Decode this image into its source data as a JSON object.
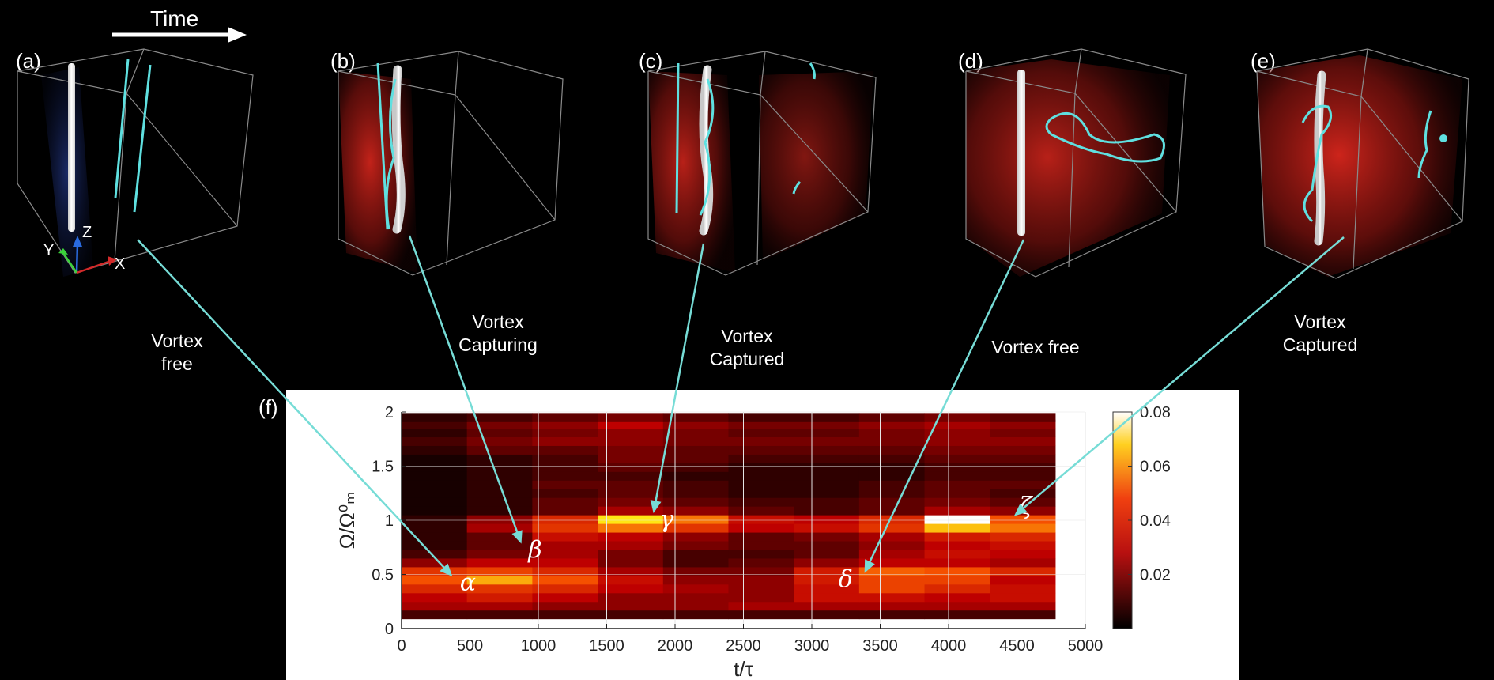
{
  "header": {
    "time_label": "Time"
  },
  "panels": [
    {
      "label": "(a)",
      "phase_lines": [
        "Vortex",
        "free"
      ]
    },
    {
      "label": "(b)",
      "phase_lines": [
        "Vortex",
        "Capturing"
      ]
    },
    {
      "label": "(c)",
      "phase_lines": [
        "Vortex",
        "Captured"
      ]
    },
    {
      "label": "(d)",
      "phase_lines": [
        "Vortex free"
      ]
    },
    {
      "label": "(e)",
      "phase_lines": [
        "Vortex",
        "Captured"
      ]
    }
  ],
  "axes_triad": {
    "x": "X",
    "y": "Y",
    "z": "Z"
  },
  "chart_panel_label": "(f)",
  "chart_data": {
    "type": "heatmap",
    "xlabel": "t/τ",
    "ylabel": "Ω/Ω⁰ₘ",
    "xlim": [
      0,
      5000
    ],
    "ylim": [
      0,
      2
    ],
    "x_data_extent": [
      0,
      4780
    ],
    "y_data_extent": [
      0.1,
      1.98
    ],
    "xticks": [
      0,
      500,
      1000,
      1500,
      2000,
      2500,
      3000,
      3500,
      4000,
      4500,
      5000
    ],
    "yticks": [
      0,
      0.5,
      1,
      1.5,
      2
    ],
    "colorbar": {
      "range": [
        0,
        0.08
      ],
      "ticks": [
        "0.02",
        "0.04",
        "0.06",
        "0.08"
      ],
      "colormap": "hot"
    },
    "bands": [
      {
        "y": 0.13,
        "intensity": [
          0.15,
          0.15,
          0.15,
          0.15,
          0.15,
          0.15,
          0.15,
          0.15,
          0.15,
          0.15
        ]
      },
      {
        "y": 0.21,
        "intensity": [
          0.35,
          0.35,
          0.3,
          0.3,
          0.3,
          0.35,
          0.35,
          0.35,
          0.35,
          0.35
        ]
      },
      {
        "y": 0.29,
        "intensity": [
          0.4,
          0.5,
          0.4,
          0.3,
          0.3,
          0.3,
          0.45,
          0.45,
          0.4,
          0.45
        ]
      },
      {
        "y": 0.37,
        "intensity": [
          0.55,
          0.6,
          0.55,
          0.4,
          0.35,
          0.3,
          0.45,
          0.65,
          0.55,
          0.45
        ]
      },
      {
        "y": 0.45,
        "intensity": [
          0.7,
          0.82,
          0.7,
          0.45,
          0.3,
          0.3,
          0.5,
          0.65,
          0.65,
          0.4
        ]
      },
      {
        "y": 0.53,
        "intensity": [
          0.6,
          0.65,
          0.55,
          0.35,
          0.25,
          0.25,
          0.5,
          0.72,
          0.7,
          0.55
        ]
      },
      {
        "y": 0.61,
        "intensity": [
          0.3,
          0.4,
          0.4,
          0.25,
          0.15,
          0.2,
          0.3,
          0.4,
          0.4,
          0.35
        ]
      },
      {
        "y": 0.69,
        "intensity": [
          0.15,
          0.25,
          0.35,
          0.25,
          0.15,
          0.15,
          0.2,
          0.35,
          0.45,
          0.4
        ]
      },
      {
        "y": 0.77,
        "intensity": [
          0.1,
          0.2,
          0.35,
          0.35,
          0.25,
          0.2,
          0.2,
          0.3,
          0.4,
          0.45
        ]
      },
      {
        "y": 0.85,
        "intensity": [
          0.1,
          0.2,
          0.45,
          0.4,
          0.3,
          0.2,
          0.25,
          0.35,
          0.5,
          0.55
        ]
      },
      {
        "y": 0.93,
        "intensity": [
          0.1,
          0.35,
          0.6,
          0.75,
          0.6,
          0.4,
          0.45,
          0.6,
          0.85,
          0.75
        ]
      },
      {
        "y": 1.01,
        "intensity": [
          0.1,
          0.3,
          0.55,
          0.9,
          0.75,
          0.45,
          0.4,
          0.55,
          1.0,
          0.7
        ]
      },
      {
        "y": 1.09,
        "intensity": [
          0.05,
          0.1,
          0.2,
          0.35,
          0.3,
          0.2,
          0.15,
          0.2,
          0.35,
          0.3
        ]
      },
      {
        "y": 1.17,
        "intensity": [
          0.05,
          0.1,
          0.2,
          0.25,
          0.2,
          0.15,
          0.15,
          0.2,
          0.25,
          0.2
        ]
      },
      {
        "y": 1.25,
        "intensity": [
          0.05,
          0.1,
          0.15,
          0.2,
          0.15,
          0.1,
          0.1,
          0.15,
          0.2,
          0.15
        ]
      },
      {
        "y": 1.33,
        "intensity": [
          0.05,
          0.1,
          0.2,
          0.2,
          0.15,
          0.1,
          0.1,
          0.15,
          0.2,
          0.2
        ]
      },
      {
        "y": 1.41,
        "intensity": [
          0.05,
          0.1,
          0.15,
          0.15,
          0.1,
          0.1,
          0.1,
          0.1,
          0.15,
          0.15
        ]
      },
      {
        "y": 1.49,
        "intensity": [
          0.05,
          0.1,
          0.15,
          0.2,
          0.15,
          0.1,
          0.1,
          0.1,
          0.15,
          0.15
        ]
      },
      {
        "y": 1.57,
        "intensity": [
          0.05,
          0.1,
          0.15,
          0.25,
          0.2,
          0.15,
          0.15,
          0.15,
          0.2,
          0.2
        ]
      },
      {
        "y": 1.65,
        "intensity": [
          0.1,
          0.2,
          0.2,
          0.25,
          0.2,
          0.2,
          0.2,
          0.2,
          0.25,
          0.25
        ]
      },
      {
        "y": 1.73,
        "intensity": [
          0.15,
          0.25,
          0.3,
          0.3,
          0.25,
          0.25,
          0.25,
          0.25,
          0.3,
          0.3
        ]
      },
      {
        "y": 1.81,
        "intensity": [
          0.1,
          0.2,
          0.25,
          0.3,
          0.25,
          0.2,
          0.2,
          0.25,
          0.3,
          0.25
        ]
      },
      {
        "y": 1.89,
        "intensity": [
          0.15,
          0.25,
          0.3,
          0.4,
          0.3,
          0.25,
          0.25,
          0.3,
          0.35,
          0.3
        ]
      },
      {
        "y": 1.95,
        "intensity": [
          0.1,
          0.15,
          0.2,
          0.25,
          0.2,
          0.15,
          0.15,
          0.2,
          0.25,
          0.2
        ]
      }
    ],
    "annotations": [
      {
        "symbol": "α",
        "x": 380,
        "y": 0.47,
        "panel": "(a)"
      },
      {
        "symbol": "β",
        "x": 880,
        "y": 0.77,
        "panel": "(b)"
      },
      {
        "symbol": "γ",
        "x": 1840,
        "y": 1.05,
        "panel": "(c)"
      },
      {
        "symbol": "δ",
        "x": 3380,
        "y": 0.5,
        "panel": "(d)"
      },
      {
        "symbol": "ζ",
        "x": 4470,
        "y": 1.03,
        "panel": "(e)"
      }
    ]
  },
  "colors": {
    "vortex_line": "#5fe0e0",
    "arrow": "#76dcd6",
    "density_blue": "#1a2f7a",
    "density_red": "#d8261e",
    "box_edge": "#8a8a8a"
  }
}
